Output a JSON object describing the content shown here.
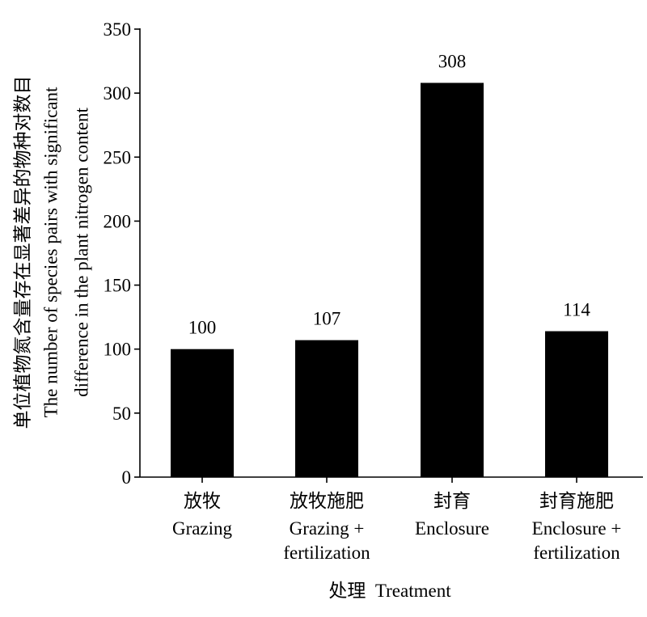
{
  "chart_data": {
    "type": "bar",
    "categories": [
      {
        "zh": "放牧",
        "en": [
          "Grazing"
        ]
      },
      {
        "zh": "放牧施肥",
        "en": [
          "Grazing +",
          "fertilization"
        ]
      },
      {
        "zh": "封育",
        "en": [
          "Enclosure"
        ]
      },
      {
        "zh": "封育施肥",
        "en": [
          "Enclosure +",
          "fertilization"
        ]
      }
    ],
    "values": [
      100,
      107,
      308,
      114
    ],
    "data_labels": [
      "100",
      "107",
      "308",
      "114"
    ],
    "xlabel": "处理  Treatment",
    "ylabel": [
      "单位植物氮含量存在显著差异的物种对数目",
      "The number of species pairs with significant",
      "difference in the plant nitrogen content"
    ],
    "ylim": [
      0,
      350
    ],
    "yticks": [
      0,
      50,
      100,
      150,
      200,
      250,
      300,
      350
    ],
    "grid": false,
    "legend": "none",
    "colors": {
      "bar": "#000000",
      "axis": "#000000",
      "text": "#000000"
    }
  }
}
